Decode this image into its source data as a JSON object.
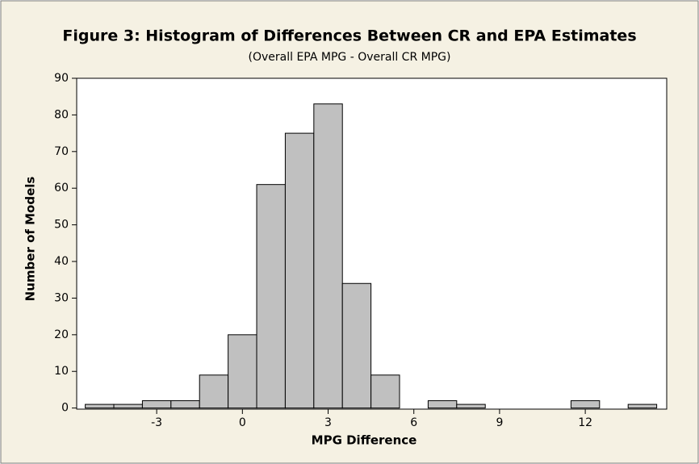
{
  "chart_data": {
    "type": "histogram",
    "title": "Figure 3: Histogram of Differences Between CR and EPA Estimates",
    "subtitle": "(Overall EPA MPG - Overall CR MPG)",
    "x_label": "MPG Difference",
    "y_label": "Number of Models",
    "bins": [
      -5.5,
      -4.5,
      -3.5,
      -2.5,
      -1.5,
      -0.5,
      0.5,
      1.5,
      2.5,
      3.5,
      4.5,
      5.5,
      6.5,
      7.5,
      8.5,
      9.5,
      10.5,
      11.5,
      12.5,
      13.5,
      14.5
    ],
    "values": [
      1,
      1,
      2,
      2,
      9,
      20,
      61,
      75,
      83,
      34,
      9,
      0,
      2,
      1,
      0,
      0,
      0,
      2,
      0,
      1
    ],
    "color": "#c0c0c0",
    "xlim": [
      -5.8,
      14.85
    ],
    "xticks": [
      -3,
      0,
      3,
      6,
      9,
      12
    ],
    "ylim": [
      -0.3,
      90
    ],
    "yticks": [
      0,
      10,
      20,
      30,
      40,
      50,
      60,
      70,
      80,
      90
    ]
  }
}
